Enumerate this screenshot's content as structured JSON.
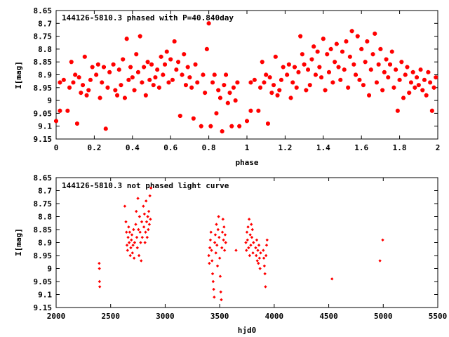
{
  "colors": {
    "points": "#ff0000",
    "axes": "#000000",
    "background": "#ffffff"
  },
  "chart_data": [
    {
      "type": "scatter",
      "title": "144126-5810.3 phased with P=40.840day",
      "xlabel": "phase",
      "ylabel": "I[mag]",
      "xlim": [
        0,
        2
      ],
      "ylim": [
        8.65,
        9.15
      ],
      "y_inverted": true,
      "xticks": [
        "0",
        "0.2",
        "0.4",
        "0.6",
        "0.8",
        "1",
        "1.2",
        "1.4",
        "1.6",
        "1.8",
        "2"
      ],
      "xtick_values": [
        0,
        0.2,
        0.4,
        0.6,
        0.8,
        1,
        1.2,
        1.4,
        1.6,
        1.8,
        2
      ],
      "yticks": [
        "8.65",
        "8.7",
        "8.75",
        "8.8",
        "8.85",
        "8.9",
        "8.95",
        "9",
        "9.05",
        "9.1",
        "9.15"
      ],
      "ytick_values": [
        8.65,
        8.7,
        8.75,
        8.8,
        8.85,
        8.9,
        8.95,
        9,
        9.05,
        9.1,
        9.15
      ],
      "grid": false,
      "marker": "filled-hexagon",
      "points": [
        [
          0.0,
          9.08
        ],
        [
          0.02,
          8.93
        ],
        [
          0.02,
          9.04
        ],
        [
          0.04,
          8.92
        ],
        [
          0.06,
          9.04
        ],
        [
          0.07,
          8.95
        ],
        [
          0.08,
          8.85
        ],
        [
          0.09,
          8.93
        ],
        [
          0.1,
          8.9
        ],
        [
          0.11,
          9.09
        ],
        [
          0.12,
          8.91
        ],
        [
          0.13,
          8.97
        ],
        [
          0.14,
          8.94
        ],
        [
          0.15,
          8.83
        ],
        [
          0.16,
          8.98
        ],
        [
          0.17,
          8.96
        ],
        [
          0.18,
          8.92
        ],
        [
          0.19,
          8.87
        ],
        [
          0.21,
          8.9
        ],
        [
          0.22,
          8.86
        ],
        [
          0.23,
          8.99
        ],
        [
          0.24,
          8.93
        ],
        [
          0.25,
          8.87
        ],
        [
          0.26,
          9.11
        ],
        [
          0.27,
          8.95
        ],
        [
          0.28,
          8.89
        ],
        [
          0.3,
          8.86
        ],
        [
          0.31,
          8.96
        ],
        [
          0.32,
          8.98
        ],
        [
          0.33,
          8.88
        ],
        [
          0.34,
          8.94
        ],
        [
          0.35,
          8.84
        ],
        [
          0.36,
          8.99
        ],
        [
          0.37,
          8.76
        ],
        [
          0.38,
          8.92
        ],
        [
          0.39,
          8.87
        ],
        [
          0.4,
          8.91
        ],
        [
          0.41,
          8.96
        ],
        [
          0.42,
          8.82
        ],
        [
          0.43,
          8.89
        ],
        [
          0.44,
          8.75
        ],
        [
          0.45,
          8.93
        ],
        [
          0.46,
          8.87
        ],
        [
          0.47,
          8.98
        ],
        [
          0.48,
          8.85
        ],
        [
          0.49,
          8.92
        ],
        [
          0.5,
          8.86
        ],
        [
          0.51,
          8.94
        ],
        [
          0.52,
          8.91
        ],
        [
          0.53,
          8.88
        ],
        [
          0.54,
          8.95
        ],
        [
          0.55,
          8.83
        ],
        [
          0.56,
          8.9
        ],
        [
          0.57,
          8.86
        ],
        [
          0.58,
          8.81
        ],
        [
          0.59,
          8.93
        ],
        [
          0.6,
          8.84
        ],
        [
          0.61,
          8.92
        ],
        [
          0.62,
          8.77
        ],
        [
          0.63,
          8.88
        ],
        [
          0.64,
          8.85
        ],
        [
          0.65,
          9.06
        ],
        [
          0.66,
          8.9
        ],
        [
          0.67,
          8.82
        ],
        [
          0.68,
          8.94
        ],
        [
          0.69,
          8.87
        ],
        [
          0.7,
          8.91
        ],
        [
          0.71,
          8.95
        ],
        [
          0.72,
          9.07
        ],
        [
          0.73,
          8.86
        ],
        [
          0.74,
          8.93
        ],
        [
          0.76,
          9.1
        ],
        [
          0.77,
          8.9
        ],
        [
          0.78,
          8.97
        ],
        [
          0.79,
          8.8
        ],
        [
          0.8,
          8.7
        ],
        [
          0.81,
          9.1
        ],
        [
          0.82,
          8.93
        ],
        [
          0.83,
          8.9
        ],
        [
          0.84,
          9.05
        ],
        [
          0.85,
          8.96
        ],
        [
          0.86,
          8.99
        ],
        [
          0.87,
          9.12
        ],
        [
          0.88,
          8.94
        ],
        [
          0.89,
          8.9
        ],
        [
          0.9,
          9.01
        ],
        [
          0.91,
          8.97
        ],
        [
          0.92,
          9.1
        ],
        [
          0.93,
          8.95
        ],
        [
          0.94,
          9.0
        ],
        [
          0.95,
          8.93
        ],
        [
          0.96,
          9.1
        ],
        [
          1.0,
          9.08
        ],
        [
          1.02,
          8.93
        ],
        [
          1.02,
          9.04
        ],
        [
          1.04,
          8.92
        ],
        [
          1.06,
          9.04
        ],
        [
          1.07,
          8.95
        ],
        [
          1.08,
          8.85
        ],
        [
          1.09,
          8.93
        ],
        [
          1.1,
          8.9
        ],
        [
          1.11,
          9.09
        ],
        [
          1.12,
          8.91
        ],
        [
          1.13,
          8.97
        ],
        [
          1.14,
          8.94
        ],
        [
          1.15,
          8.83
        ],
        [
          1.16,
          8.98
        ],
        [
          1.17,
          8.96
        ],
        [
          1.18,
          8.92
        ],
        [
          1.19,
          8.87
        ],
        [
          1.21,
          8.9
        ],
        [
          1.22,
          8.86
        ],
        [
          1.23,
          8.99
        ],
        [
          1.24,
          8.93
        ],
        [
          1.25,
          8.87
        ],
        [
          1.26,
          8.95
        ],
        [
          1.27,
          8.89
        ],
        [
          1.28,
          8.75
        ],
        [
          1.29,
          8.82
        ],
        [
          1.3,
          8.86
        ],
        [
          1.31,
          8.96
        ],
        [
          1.32,
          8.88
        ],
        [
          1.33,
          8.94
        ],
        [
          1.34,
          8.84
        ],
        [
          1.35,
          8.79
        ],
        [
          1.36,
          8.9
        ],
        [
          1.37,
          8.81
        ],
        [
          1.38,
          8.87
        ],
        [
          1.39,
          8.91
        ],
        [
          1.4,
          8.76
        ],
        [
          1.41,
          8.96
        ],
        [
          1.42,
          8.82
        ],
        [
          1.43,
          8.89
        ],
        [
          1.44,
          8.8
        ],
        [
          1.45,
          8.93
        ],
        [
          1.46,
          8.85
        ],
        [
          1.47,
          8.78
        ],
        [
          1.48,
          8.87
        ],
        [
          1.49,
          8.92
        ],
        [
          1.5,
          8.81
        ],
        [
          1.51,
          8.88
        ],
        [
          1.52,
          8.77
        ],
        [
          1.53,
          8.95
        ],
        [
          1.54,
          8.83
        ],
        [
          1.55,
          8.73
        ],
        [
          1.56,
          8.86
        ],
        [
          1.57,
          8.9
        ],
        [
          1.58,
          8.75
        ],
        [
          1.59,
          8.92
        ],
        [
          1.6,
          8.8
        ],
        [
          1.61,
          8.94
        ],
        [
          1.62,
          8.85
        ],
        [
          1.63,
          8.77
        ],
        [
          1.64,
          8.98
        ],
        [
          1.65,
          8.88
        ],
        [
          1.66,
          8.82
        ],
        [
          1.67,
          8.74
        ],
        [
          1.68,
          8.93
        ],
        [
          1.69,
          8.86
        ],
        [
          1.7,
          8.8
        ],
        [
          1.71,
          8.96
        ],
        [
          1.72,
          8.89
        ],
        [
          1.73,
          8.84
        ],
        [
          1.74,
          8.91
        ],
        [
          1.75,
          8.86
        ],
        [
          1.76,
          8.81
        ],
        [
          1.77,
          8.95
        ],
        [
          1.78,
          8.88
        ],
        [
          1.79,
          9.04
        ],
        [
          1.8,
          8.92
        ],
        [
          1.81,
          8.85
        ],
        [
          1.82,
          8.99
        ],
        [
          1.83,
          8.9
        ],
        [
          1.84,
          8.87
        ],
        [
          1.85,
          8.97
        ],
        [
          1.86,
          8.93
        ],
        [
          1.87,
          8.89
        ],
        [
          1.88,
          8.95
        ],
        [
          1.89,
          8.91
        ],
        [
          1.9,
          8.94
        ],
        [
          1.91,
          8.88
        ],
        [
          1.92,
          8.96
        ],
        [
          1.93,
          8.92
        ],
        [
          1.94,
          8.98
        ],
        [
          1.95,
          8.89
        ],
        [
          1.96,
          8.93
        ],
        [
          1.97,
          9.04
        ],
        [
          1.98,
          8.95
        ],
        [
          1.99,
          8.91
        ]
      ]
    },
    {
      "type": "scatter",
      "title": "144126-5810.3 not phased light curve",
      "xlabel": "hjd0",
      "ylabel": "I[mag]",
      "xlim": [
        2000,
        5500
      ],
      "ylim": [
        8.65,
        9.15
      ],
      "y_inverted": true,
      "xticks": [
        "2000",
        "2500",
        "3000",
        "3500",
        "4000",
        "4500",
        "5000",
        "5500"
      ],
      "xtick_values": [
        2000,
        2500,
        3000,
        3500,
        4000,
        4500,
        5000,
        5500
      ],
      "yticks": [
        "8.65",
        "8.7",
        "8.75",
        "8.8",
        "8.85",
        "8.9",
        "8.95",
        "9",
        "9.05",
        "9.1",
        "9.15"
      ],
      "ytick_values": [
        8.65,
        8.7,
        8.75,
        8.8,
        8.85,
        8.9,
        8.95,
        9,
        9.05,
        9.1,
        9.15
      ],
      "grid": false,
      "marker": "small-diamond",
      "points": [
        [
          2395,
          8.98
        ],
        [
          2397,
          9.0
        ],
        [
          2398,
          9.05
        ],
        [
          2400,
          9.07
        ],
        [
          2630,
          8.76
        ],
        [
          2640,
          8.82
        ],
        [
          2645,
          8.86
        ],
        [
          2650,
          8.91
        ],
        [
          2655,
          8.93
        ],
        [
          2660,
          8.88
        ],
        [
          2665,
          8.84
        ],
        [
          2670,
          8.9
        ],
        [
          2675,
          8.86
        ],
        [
          2680,
          8.95
        ],
        [
          2685,
          8.92
        ],
        [
          2690,
          8.89
        ],
        [
          2695,
          8.87
        ],
        [
          2700,
          8.94
        ],
        [
          2705,
          8.91
        ],
        [
          2710,
          8.85
        ],
        [
          2715,
          8.96
        ],
        [
          2720,
          8.9
        ],
        [
          2730,
          8.83
        ],
        [
          2735,
          8.78
        ],
        [
          2740,
          8.88
        ],
        [
          2745,
          8.92
        ],
        [
          2750,
          8.73
        ],
        [
          2755,
          8.85
        ],
        [
          2760,
          8.95
        ],
        [
          2765,
          8.8
        ],
        [
          2770,
          8.86
        ],
        [
          2775,
          8.9
        ],
        [
          2780,
          8.97
        ],
        [
          2785,
          8.82
        ],
        [
          2790,
          8.88
        ],
        [
          2800,
          8.76
        ],
        [
          2805,
          8.84
        ],
        [
          2810,
          8.79
        ],
        [
          2815,
          8.9
        ],
        [
          2820,
          8.86
        ],
        [
          2825,
          8.74
        ],
        [
          2830,
          8.82
        ],
        [
          2835,
          8.88
        ],
        [
          2840,
          8.8
        ],
        [
          2845,
          8.85
        ],
        [
          2850,
          8.78
        ],
        [
          2855,
          8.83
        ],
        [
          2860,
          8.72
        ],
        [
          2865,
          8.81
        ],
        [
          2870,
          8.69
        ],
        [
          3400,
          8.95
        ],
        [
          3405,
          8.98
        ],
        [
          3410,
          8.92
        ],
        [
          3415,
          8.89
        ],
        [
          3420,
          8.86
        ],
        [
          3425,
          8.93
        ],
        [
          3430,
          8.97
        ],
        [
          3435,
          9.02
        ],
        [
          3440,
          9.05
        ],
        [
          3445,
          9.08
        ],
        [
          3450,
          9.11
        ],
        [
          3455,
          8.9
        ],
        [
          3460,
          8.87
        ],
        [
          3465,
          8.94
        ],
        [
          3470,
          8.83
        ],
        [
          3475,
          8.91
        ],
        [
          3480,
          8.99
        ],
        [
          3485,
          8.85
        ],
        [
          3490,
          8.8
        ],
        [
          3495,
          8.88
        ],
        [
          3500,
          8.96
        ],
        [
          3505,
          9.03
        ],
        [
          3510,
          9.09
        ],
        [
          3515,
          9.12
        ],
        [
          3520,
          8.92
        ],
        [
          3525,
          8.86
        ],
        [
          3530,
          8.81
        ],
        [
          3535,
          8.89
        ],
        [
          3540,
          8.84
        ],
        [
          3545,
          8.93
        ],
        [
          3550,
          8.87
        ],
        [
          3555,
          8.9
        ],
        [
          3650,
          8.93
        ],
        [
          3740,
          8.9
        ],
        [
          3745,
          8.93
        ],
        [
          3750,
          8.86
        ],
        [
          3755,
          8.89
        ],
        [
          3760,
          8.84
        ],
        [
          3765,
          8.92
        ],
        [
          3770,
          8.81
        ],
        [
          3775,
          8.95
        ],
        [
          3780,
          8.87
        ],
        [
          3785,
          8.91
        ],
        [
          3790,
          8.83
        ],
        [
          3795,
          8.88
        ],
        [
          3800,
          8.85
        ],
        [
          3805,
          8.94
        ],
        [
          3810,
          8.9
        ],
        [
          3830,
          8.92
        ],
        [
          3835,
          8.95
        ],
        [
          3840,
          8.89
        ],
        [
          3845,
          8.97
        ],
        [
          3850,
          8.93
        ],
        [
          3855,
          8.98
        ],
        [
          3860,
          8.91
        ],
        [
          3865,
          8.96
        ],
        [
          3870,
          9.0
        ],
        [
          3875,
          8.94
        ],
        [
          3900,
          8.93
        ],
        [
          3905,
          8.96
        ],
        [
          3910,
          8.99
        ],
        [
          3915,
          9.02
        ],
        [
          3920,
          9.07
        ],
        [
          3925,
          8.95
        ],
        [
          3930,
          8.91
        ],
        [
          3935,
          8.89
        ],
        [
          4530,
          9.04
        ],
        [
          4970,
          8.97
        ],
        [
          4995,
          8.89
        ]
      ]
    }
  ]
}
